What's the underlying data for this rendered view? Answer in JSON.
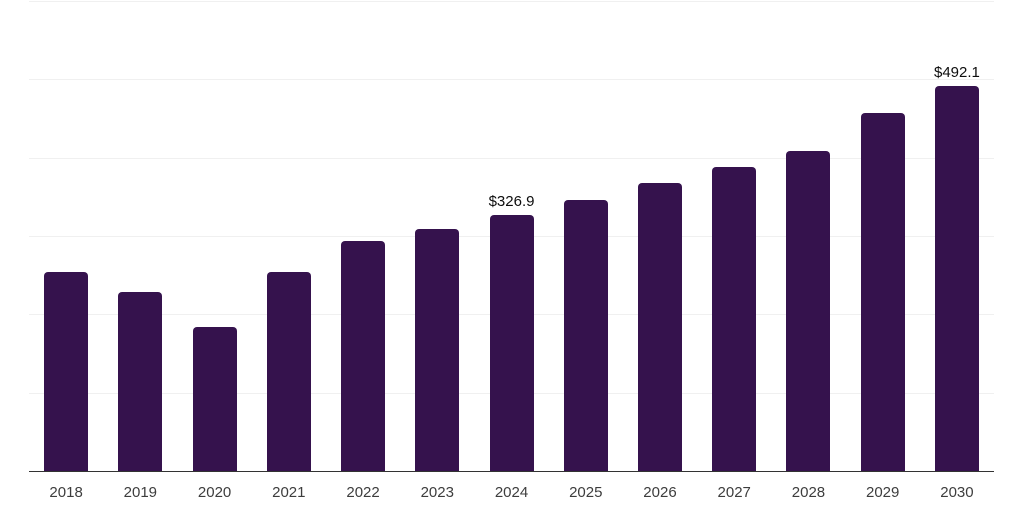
{
  "chart_data": {
    "type": "bar",
    "title": "",
    "xlabel": "",
    "ylabel": "",
    "categories": [
      "2018",
      "2019",
      "2020",
      "2021",
      "2022",
      "2023",
      "2024",
      "2025",
      "2026",
      "2027",
      "2028",
      "2029",
      "2030"
    ],
    "values": [
      254.5,
      228.6,
      183.5,
      254.5,
      293.8,
      308.6,
      326.9,
      346.0,
      368.0,
      388.4,
      408.8,
      457.3,
      492.1
    ],
    "annotations": [
      {
        "category": "2024",
        "text": "$326.9"
      },
      {
        "category": "2030",
        "text": "$492.1"
      }
    ],
    "ylim": [
      0,
      600
    ],
    "gridline_values": [
      100,
      200,
      300,
      400,
      500,
      600
    ],
    "grid": "horizontal-only",
    "legend": "none",
    "y_axis_labels_visible": false,
    "currency_prefix": "$"
  },
  "colors": {
    "background": "#ffffff",
    "bar": "#35124D",
    "grid": "#f0f0f0",
    "axis": "#333333",
    "tick_label": "#3d3d3d",
    "value_label": "#0d0d0d"
  }
}
